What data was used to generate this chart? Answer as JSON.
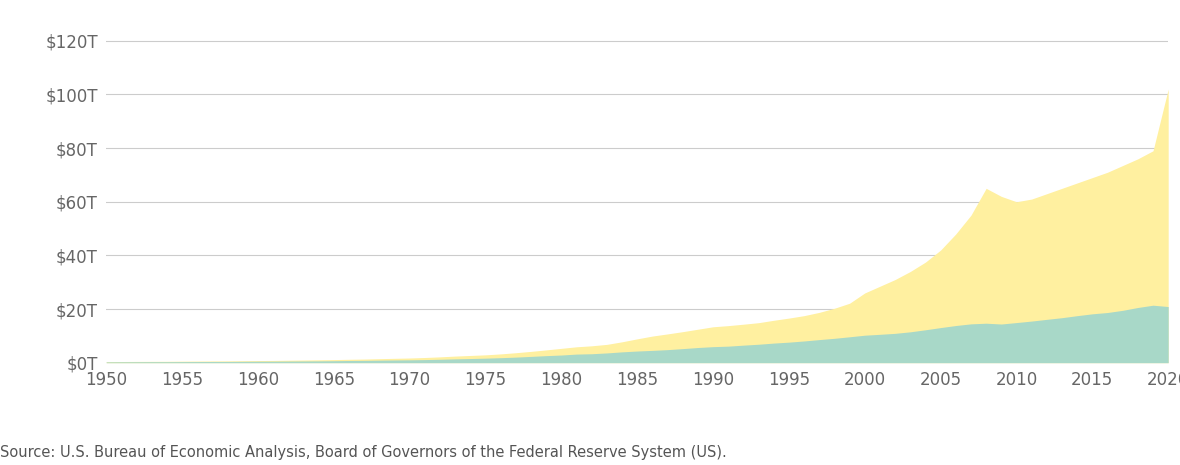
{
  "years": [
    1950,
    1951,
    1952,
    1953,
    1954,
    1955,
    1956,
    1957,
    1958,
    1959,
    1960,
    1961,
    1962,
    1963,
    1964,
    1965,
    1966,
    1967,
    1968,
    1969,
    1970,
    1971,
    1972,
    1973,
    1974,
    1975,
    1976,
    1977,
    1978,
    1979,
    1980,
    1981,
    1982,
    1983,
    1984,
    1985,
    1986,
    1987,
    1988,
    1989,
    1990,
    1991,
    1992,
    1993,
    1994,
    1995,
    1996,
    1997,
    1998,
    1999,
    2000,
    2001,
    2002,
    2003,
    2004,
    2005,
    2006,
    2007,
    2008,
    2009,
    2010,
    2011,
    2012,
    2013,
    2014,
    2015,
    2016,
    2017,
    2018,
    2019,
    2020
  ],
  "gdp": [
    0.3,
    0.34,
    0.36,
    0.38,
    0.38,
    0.41,
    0.43,
    0.45,
    0.46,
    0.5,
    0.54,
    0.56,
    0.6,
    0.64,
    0.68,
    0.74,
    0.82,
    0.86,
    0.94,
    1.01,
    1.07,
    1.16,
    1.28,
    1.43,
    1.55,
    1.69,
    1.87,
    2.08,
    2.35,
    2.63,
    2.86,
    3.21,
    3.34,
    3.64,
    4.04,
    4.35,
    4.59,
    4.87,
    5.25,
    5.66,
    5.98,
    6.17,
    6.54,
    6.88,
    7.31,
    7.66,
    8.1,
    8.61,
    9.09,
    9.66,
    10.25,
    10.58,
    10.94,
    11.51,
    12.27,
    13.09,
    13.86,
    14.48,
    14.72,
    14.42,
    14.96,
    15.52,
    16.16,
    16.78,
    17.53,
    18.22,
    18.71,
    19.52,
    20.58,
    21.43,
    20.93
  ],
  "credit": [
    0.4,
    0.44,
    0.48,
    0.5,
    0.52,
    0.57,
    0.61,
    0.65,
    0.68,
    0.74,
    0.8,
    0.84,
    0.92,
    0.99,
    1.07,
    1.16,
    1.27,
    1.36,
    1.5,
    1.63,
    1.75,
    1.94,
    2.18,
    2.47,
    2.7,
    2.93,
    3.28,
    3.72,
    4.22,
    4.77,
    5.35,
    5.93,
    6.3,
    6.83,
    7.79,
    8.89,
    9.93,
    10.73,
    11.57,
    12.48,
    13.39,
    13.82,
    14.35,
    14.92,
    15.81,
    16.63,
    17.54,
    18.76,
    20.29,
    22.17,
    26.0,
    28.5,
    31.0,
    34.0,
    37.5,
    42.0,
    48.0,
    55.0,
    65.0,
    62.0,
    60.0,
    61.0,
    63.0,
    65.0,
    67.0,
    69.0,
    71.0,
    73.5,
    76.0,
    79.0,
    102.0
  ],
  "gdp_color": "#A8D8C8",
  "credit_color": "#FFF0A0",
  "background_color": "#FFFFFF",
  "grid_color": "#CCCCCC",
  "source_text": "Source: U.S. Bureau of Economic Analysis, Board of Governors of the Federal Reserve System (US).",
  "ylim": [
    0,
    130
  ],
  "yticks": [
    0,
    20,
    40,
    60,
    80,
    100,
    120
  ],
  "ytick_labels": [
    "$0T",
    "$20T",
    "$40T",
    "$60T",
    "$80T",
    "$100T",
    "$120T"
  ],
  "xlim": [
    1950,
    2020
  ],
  "xticks": [
    1950,
    1955,
    1960,
    1965,
    1970,
    1975,
    1980,
    1985,
    1990,
    1995,
    2000,
    2005,
    2010,
    2015,
    2020
  ]
}
